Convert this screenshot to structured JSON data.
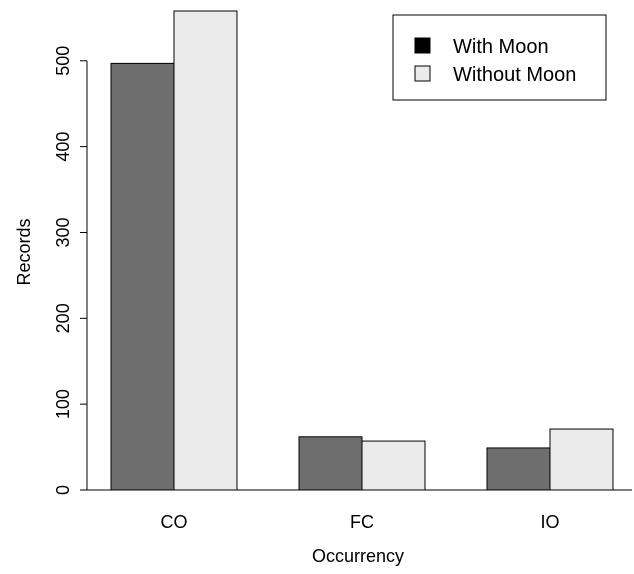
{
  "chart_data": {
    "type": "bar",
    "title": "",
    "xlabel": "Occurrency",
    "ylabel": "Records",
    "categories": [
      "CO",
      "FC",
      "IO"
    ],
    "series": [
      {
        "name": "With Moon",
        "color": "#6e6e6e",
        "values": [
          497,
          62,
          49
        ]
      },
      {
        "name": "Without Moon",
        "color": "#ebebeb",
        "values": [
          558,
          57,
          71
        ]
      }
    ],
    "ylim": [
      0,
      558
    ],
    "yticks": [
      "0",
      "100",
      "200",
      "300",
      "400",
      "500"
    ],
    "legend": {
      "position": "top-right",
      "entries": [
        {
          "label": "With Moon",
          "swatch_color": "#000000"
        },
        {
          "label": "Without Moon",
          "swatch_color": "#ebebeb"
        }
      ]
    },
    "grid": false
  }
}
